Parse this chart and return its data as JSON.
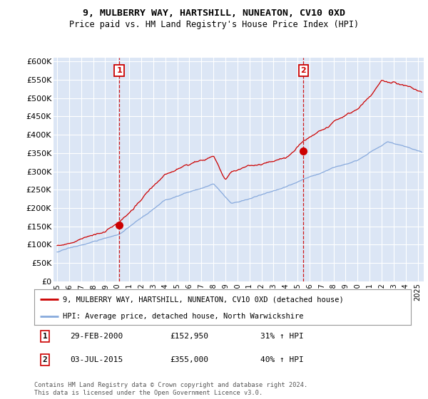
{
  "title1": "9, MULBERRY WAY, HARTSHILL, NUNEATON, CV10 0XD",
  "title2": "Price paid vs. HM Land Registry's House Price Index (HPI)",
  "ylabel_ticks": [
    "£0",
    "£50K",
    "£100K",
    "£150K",
    "£200K",
    "£250K",
    "£300K",
    "£350K",
    "£400K",
    "£450K",
    "£500K",
    "£550K",
    "£600K"
  ],
  "ytick_values": [
    0,
    50000,
    100000,
    150000,
    200000,
    250000,
    300000,
    350000,
    400000,
    450000,
    500000,
    550000,
    600000
  ],
  "ylim": [
    0,
    610000
  ],
  "xlim_start": 1994.7,
  "xlim_end": 2025.5,
  "bg_color": "#dce6f5",
  "grid_color": "#ffffff",
  "red_color": "#cc0000",
  "blue_color": "#88aadd",
  "marker1_x": 2000.17,
  "marker1_y": 152950,
  "marker2_x": 2015.5,
  "marker2_y": 355000,
  "vline1_x": 2000.17,
  "vline2_x": 2015.5,
  "legend_line1": "9, MULBERRY WAY, HARTSHILL, NUNEATON, CV10 0XD (detached house)",
  "legend_line2": "HPI: Average price, detached house, North Warwickshire",
  "table_row1": [
    "1",
    "29-FEB-2000",
    "£152,950",
    "31% ↑ HPI"
  ],
  "table_row2": [
    "2",
    "03-JUL-2015",
    "£355,000",
    "40% ↑ HPI"
  ],
  "footer": "Contains HM Land Registry data © Crown copyright and database right 2024.\nThis data is licensed under the Open Government Licence v3.0.",
  "xtick_years": [
    1995,
    1996,
    1997,
    1998,
    1999,
    2000,
    2001,
    2002,
    2003,
    2004,
    2005,
    2006,
    2007,
    2008,
    2009,
    2010,
    2011,
    2012,
    2013,
    2014,
    2015,
    2016,
    2017,
    2018,
    2019,
    2020,
    2021,
    2022,
    2023,
    2024,
    2025
  ]
}
